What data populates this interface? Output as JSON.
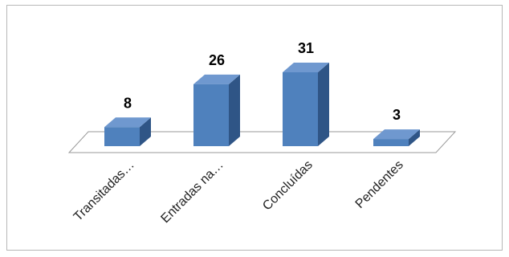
{
  "chart_data": {
    "type": "bar",
    "categories": [
      "Transitadas…",
      "Entradas na…",
      "Concluídas",
      "Pendentes"
    ],
    "values": [
      8,
      26,
      31,
      3
    ],
    "data_labels": [
      "8",
      "26",
      "31",
      "3"
    ],
    "title": "",
    "xlabel": "",
    "ylabel": "",
    "ylim": [
      0,
      31
    ],
    "grid": false,
    "legend": "none",
    "style": "3d-column",
    "colors": {
      "bar_front": "#4f81bd",
      "bar_side": "#2f5586",
      "bar_top": "#6f98cf",
      "floor": "#ffffff",
      "floor_stroke": "#9a9a9a",
      "frame": "#b7b7b7"
    }
  }
}
